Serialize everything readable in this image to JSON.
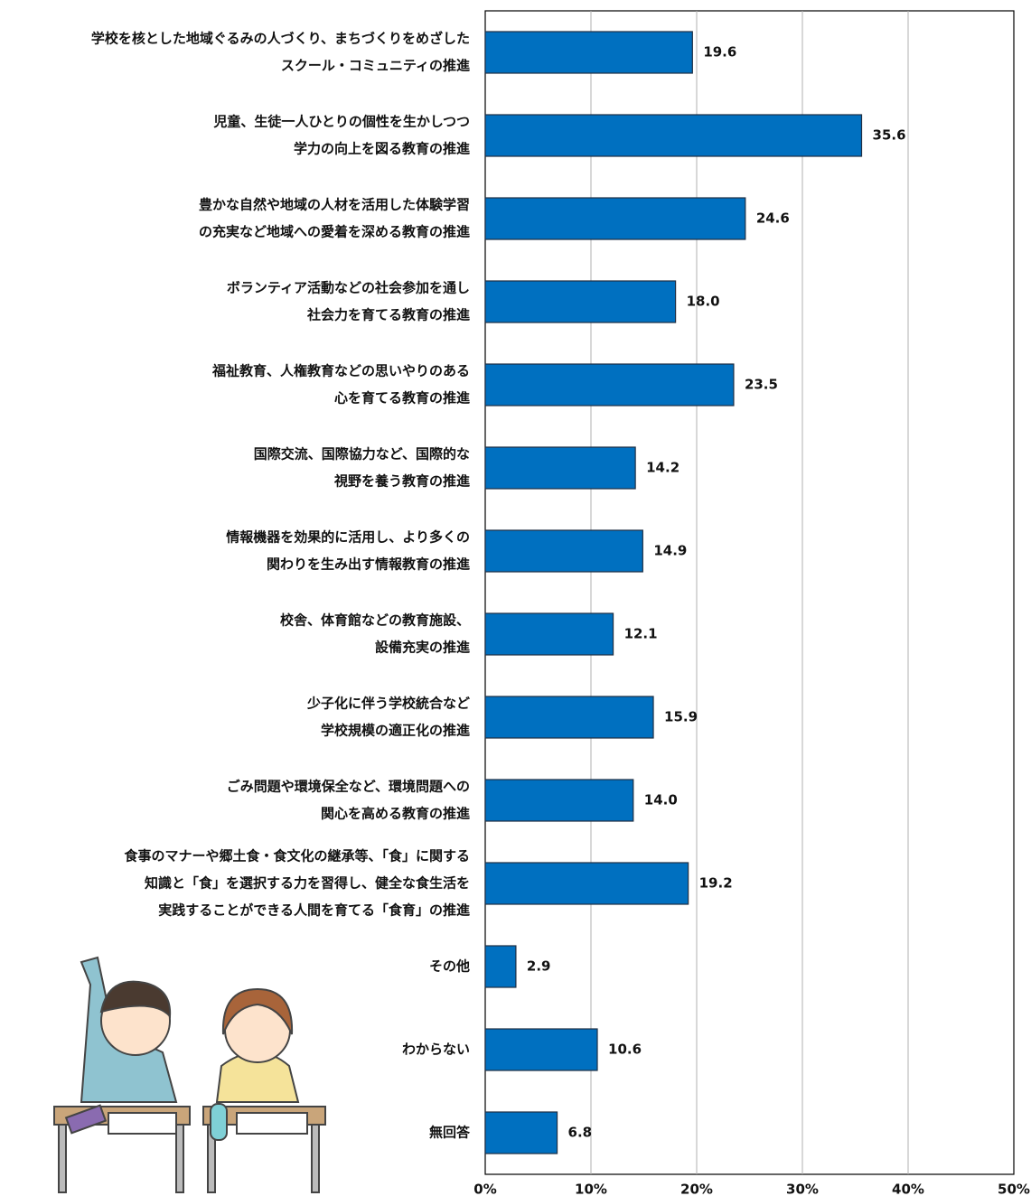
{
  "chart_data": {
    "type": "barh",
    "categories": [
      [
        "学校を核とした地域ぐるみの人づくり、まちづくりをめざした",
        "スクール・コミュニティの推進"
      ],
      [
        "児童、生徒一人ひとりの個性を生かしつつ",
        "学力の向上を図る教育の推進"
      ],
      [
        "豊かな自然や地域の人材を活用した体験学習",
        "の充実など地域への愛着を深める教育の推進"
      ],
      [
        "ボランティア活動などの社会参加を通し",
        "社会力を育てる教育の推進"
      ],
      [
        "福祉教育、人権教育などの思いやりのある",
        "心を育てる教育の推進"
      ],
      [
        "国際交流、国際協力など、国際的な",
        "視野を養う教育の推進"
      ],
      [
        "情報機器を効果的に活用し、より多くの",
        "関わりを生み出す情報教育の推進"
      ],
      [
        "校舎、体育館などの教育施設、",
        "設備充実の推進"
      ],
      [
        "少子化に伴う学校統合など",
        "学校規模の適正化の推進"
      ],
      [
        "ごみ問題や環境保全など、環境問題への",
        "関心を高める教育の推進"
      ],
      [
        "食事のマナーや郷土食・食文化の継承等、「食」に関する",
        "知識と「食」を選択する力を習得し、健全な食生活を",
        "実践することができる人間を育てる「食育」の推進"
      ],
      [
        "その他"
      ],
      [
        "わからない"
      ],
      [
        "無回答"
      ]
    ],
    "values": [
      19.6,
      35.6,
      24.6,
      18.0,
      23.5,
      14.2,
      14.9,
      12.1,
      15.9,
      14.0,
      19.2,
      2.9,
      10.6,
      6.8
    ],
    "value_labels": [
      "19.6",
      "35.6",
      "24.6",
      "18.0",
      "23.5",
      "14.2",
      "14.9",
      "12.1",
      "15.9",
      "14.0",
      "19.2",
      "2.9",
      "10.6",
      "6.8"
    ],
    "color": "#0070c0",
    "xlim": [
      0,
      50
    ],
    "xticks": [
      {
        "value": 0,
        "label": "0%"
      },
      {
        "value": 10,
        "label": "10%"
      },
      {
        "value": 20,
        "label": "20%"
      },
      {
        "value": 30,
        "label": "30%"
      },
      {
        "value": 40,
        "label": "40%"
      },
      {
        "value": 50,
        "label": "50%"
      }
    ],
    "grid": true
  }
}
